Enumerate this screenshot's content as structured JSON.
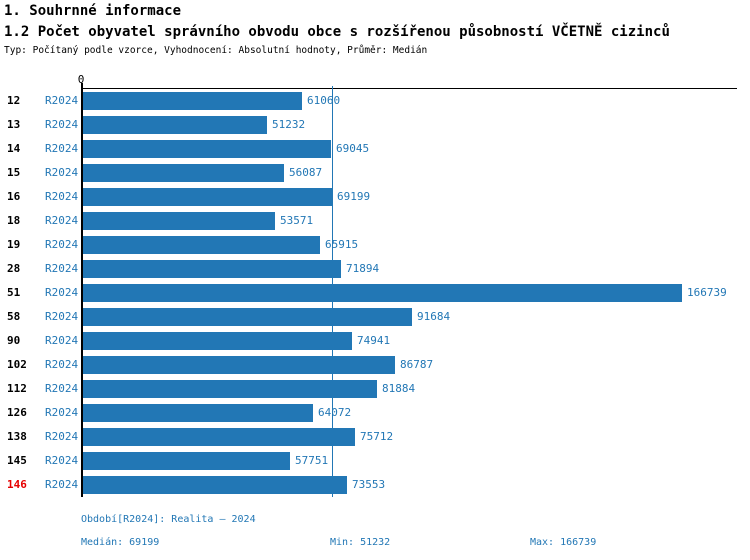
{
  "header": {
    "section_title": "1. Souhrnné informace",
    "indicator_title": "1.2 Počet obyvatel správního obvodu obce s rozšířenou působností VČETNĚ cizinců",
    "subtitle": "Typ: Počítaný podle vzorce, Vyhodnocení: Absolutní hodnoty, Průměr: Medián"
  },
  "chart_data": {
    "type": "bar",
    "orientation": "horizontal",
    "title": "1.2 Počet obyvatel správního obvodu obce s rozšířenou působností VČETNĚ cizinců",
    "origin_tick_label": "0",
    "axis_min": 0,
    "axis_max": 166739,
    "grid": false,
    "categories": [
      "12",
      "13",
      "14",
      "15",
      "16",
      "18",
      "19",
      "28",
      "51",
      "58",
      "90",
      "102",
      "112",
      "126",
      "138",
      "145",
      "146"
    ],
    "series": [
      {
        "name": "R2024",
        "values": [
          61060,
          51232,
          69045,
          56087,
          69199,
          53571,
          65915,
          71894,
          166739,
          91684,
          74941,
          86787,
          81884,
          64072,
          75712,
          57751,
          73553
        ]
      }
    ],
    "median_value": 69199,
    "highlight_category": "146",
    "bar_color": "#2277b5",
    "label_color": "#2277b5",
    "highlight_color": "#e60000",
    "axis_color": "#000000"
  },
  "footer": {
    "period_label": "Období[R2024]: Realita – 2024",
    "median_label": "Medián: 69199",
    "min_label": "Min: 51232",
    "max_label": "Max: 166739"
  }
}
